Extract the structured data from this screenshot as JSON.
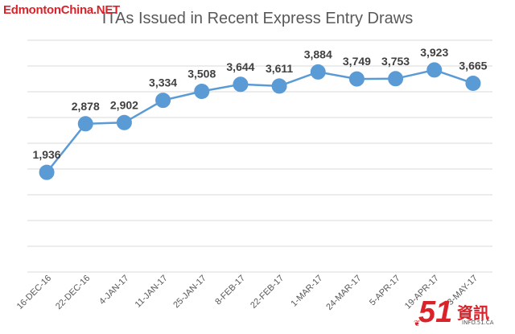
{
  "watermark_top": "EdmontonChina.NET",
  "logo": {
    "number": "51",
    "text": "資訊",
    "site": "INFO.51.CA"
  },
  "chart_data": {
    "type": "line",
    "title": "ITAs Issued in Recent Express Entry Draws",
    "categories": [
      "16-DEC-16",
      "22-DEC-16",
      "4-JAN-17",
      "11-JAN-17",
      "25-JAN-17",
      "8-FEB-17",
      "22-FEB-17",
      "1-MAR-17",
      "24-MAR-17",
      "5-APR-17",
      "19-APR-17",
      "3-MAY-17"
    ],
    "series": [
      {
        "values": [
          1936,
          2878,
          2902,
          3334,
          3508,
          3644,
          3611,
          3884,
          3749,
          3753,
          3923,
          3665
        ]
      }
    ],
    "data_labels": [
      "1,936",
      "2,878",
      "2,902",
      "3,334",
      "3,508",
      "3,644",
      "3,611",
      "3,884",
      "3,749",
      "3,753",
      "3,923",
      "3,665"
    ],
    "ylim": [
      0,
      4500
    ],
    "grid": true,
    "colors": {
      "line": "#5b9bd5",
      "marker": "#5b9bd5",
      "label": "#404040",
      "grid": "#d9d9d9"
    }
  }
}
